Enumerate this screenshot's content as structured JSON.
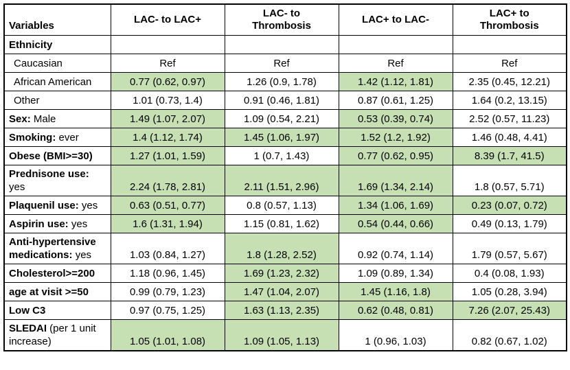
{
  "colors": {
    "highlight": "#c6e0b4",
    "border": "#000000",
    "background": "#ffffff"
  },
  "table": {
    "columns": [
      "Variables",
      "LAC- to LAC+",
      "LAC- to\nThrombosis",
      "LAC+ to LAC-",
      "LAC+ to\nThrombosis"
    ],
    "rows": [
      {
        "indent": false,
        "label": [
          {
            "text": "Ethnicity",
            "bold": true
          }
        ],
        "cells": [
          {
            "v": "",
            "hl": false
          },
          {
            "v": "",
            "hl": false
          },
          {
            "v": "",
            "hl": false
          },
          {
            "v": "",
            "hl": false
          }
        ]
      },
      {
        "indent": true,
        "label": [
          {
            "text": "Caucasian",
            "bold": false
          }
        ],
        "cells": [
          {
            "v": "Ref",
            "hl": false
          },
          {
            "v": "Ref",
            "hl": false
          },
          {
            "v": "Ref",
            "hl": false
          },
          {
            "v": "Ref",
            "hl": false
          }
        ]
      },
      {
        "indent": true,
        "label": [
          {
            "text": "African American",
            "bold": false
          }
        ],
        "cells": [
          {
            "v": "0.77 (0.62, 0.97)",
            "hl": true
          },
          {
            "v": "1.26 (0.9, 1.78)",
            "hl": false
          },
          {
            "v": "1.42 (1.12, 1.81)",
            "hl": true
          },
          {
            "v": "2.35 (0.45, 12.21)",
            "hl": false
          }
        ]
      },
      {
        "indent": true,
        "label": [
          {
            "text": "Other",
            "bold": false
          }
        ],
        "cells": [
          {
            "v": "1.01 (0.73, 1.4)",
            "hl": false
          },
          {
            "v": "0.91 (0.46, 1.81)",
            "hl": false
          },
          {
            "v": "0.87 (0.61, 1.25)",
            "hl": false
          },
          {
            "v": "1.64 (0.2, 13.15)",
            "hl": false
          }
        ]
      },
      {
        "indent": false,
        "label": [
          {
            "text": "Sex:",
            "bold": true
          },
          {
            "text": " Male",
            "bold": false
          }
        ],
        "cells": [
          {
            "v": "1.49 (1.07, 2.07)",
            "hl": true
          },
          {
            "v": "1.09 (0.54, 2.21)",
            "hl": false
          },
          {
            "v": "0.53 (0.39, 0.74)",
            "hl": true
          },
          {
            "v": "2.52 (0.57, 11.23)",
            "hl": false
          }
        ]
      },
      {
        "indent": false,
        "label": [
          {
            "text": "Smoking:",
            "bold": true
          },
          {
            "text": " ever",
            "bold": false
          }
        ],
        "cells": [
          {
            "v": "1.4 (1.12, 1.74)",
            "hl": true
          },
          {
            "v": "1.45 (1.06, 1.97)",
            "hl": true
          },
          {
            "v": "1.52 (1.2, 1.92)",
            "hl": true
          },
          {
            "v": "1.46 (0.48, 4.41)",
            "hl": false
          }
        ]
      },
      {
        "indent": false,
        "label": [
          {
            "text": "Obese (BMI>=30)",
            "bold": true
          }
        ],
        "cells": [
          {
            "v": "1.27 (1.01, 1.59)",
            "hl": true
          },
          {
            "v": "1 (0.7, 1.43)",
            "hl": false
          },
          {
            "v": "0.77 (0.62, 0.95)",
            "hl": true
          },
          {
            "v": "8.39 (1.7, 41.5)",
            "hl": true
          }
        ]
      },
      {
        "indent": false,
        "label": [
          {
            "text": "Prednisone use:",
            "bold": true,
            "br": true
          },
          {
            "text": "yes",
            "bold": false
          }
        ],
        "cells": [
          {
            "v": "2.24 (1.78, 2.81)",
            "hl": true
          },
          {
            "v": "2.11 (1.51, 2.96)",
            "hl": true
          },
          {
            "v": "1.69 (1.34, 2.14)",
            "hl": true
          },
          {
            "v": "1.8 (0.57, 5.71)",
            "hl": false
          }
        ]
      },
      {
        "indent": false,
        "label": [
          {
            "text": "Plaquenil use:",
            "bold": true
          },
          {
            "text": " yes",
            "bold": false
          }
        ],
        "cells": [
          {
            "v": "0.63 (0.51, 0.77)",
            "hl": true
          },
          {
            "v": "0.8 (0.57, 1.13)",
            "hl": false
          },
          {
            "v": "1.34 (1.06, 1.69)",
            "hl": true
          },
          {
            "v": "0.23 (0.07, 0.72)",
            "hl": true
          }
        ]
      },
      {
        "indent": false,
        "label": [
          {
            "text": "Aspirin use:",
            "bold": true
          },
          {
            "text": " yes",
            "bold": false
          }
        ],
        "cells": [
          {
            "v": "1.6 (1.31, 1.94)",
            "hl": true
          },
          {
            "v": "1.15 (0.81, 1.62)",
            "hl": false
          },
          {
            "v": "0.54 (0.44, 0.66)",
            "hl": true
          },
          {
            "v": "0.49 (0.13, 1.79)",
            "hl": false
          }
        ]
      },
      {
        "indent": false,
        "label": [
          {
            "text": "Anti-hypertensive medications:",
            "bold": true
          },
          {
            "text": " yes",
            "bold": false
          }
        ],
        "cells": [
          {
            "v": "1.03 (0.84, 1.27)",
            "hl": false
          },
          {
            "v": "1.8 (1.28, 2.52)",
            "hl": true
          },
          {
            "v": "0.92 (0.74, 1.14)",
            "hl": false
          },
          {
            "v": "1.79 (0.57, 5.67)",
            "hl": false
          }
        ]
      },
      {
        "indent": false,
        "label": [
          {
            "text": "Cholesterol>=200",
            "bold": true
          }
        ],
        "cells": [
          {
            "v": "1.18 (0.96, 1.45)",
            "hl": false
          },
          {
            "v": "1.69 (1.23, 2.32)",
            "hl": true
          },
          {
            "v": "1.09 (0.89, 1.34)",
            "hl": false
          },
          {
            "v": "0.4 (0.08, 1.93)",
            "hl": false
          }
        ]
      },
      {
        "indent": false,
        "label": [
          {
            "text": "age at visit >=50",
            "bold": true
          }
        ],
        "cells": [
          {
            "v": "0.99 (0.79, 1.23)",
            "hl": false
          },
          {
            "v": "1.47 (1.04, 2.07)",
            "hl": true
          },
          {
            "v": "1.45 (1.16, 1.8)",
            "hl": true
          },
          {
            "v": "1.05 (0.28, 3.94)",
            "hl": false
          }
        ]
      },
      {
        "indent": false,
        "label": [
          {
            "text": "Low C3",
            "bold": true
          }
        ],
        "cells": [
          {
            "v": "0.97 (0.75, 1.25)",
            "hl": false
          },
          {
            "v": "1.63 (1.13, 2.35)",
            "hl": true
          },
          {
            "v": "0.62 (0.48, 0.81)",
            "hl": true
          },
          {
            "v": "7.26 (2.07, 25.43)",
            "hl": true
          }
        ]
      },
      {
        "indent": false,
        "label": [
          {
            "text": "SLEDAI",
            "bold": true
          },
          {
            "text": " (per 1 unit increase)",
            "bold": false
          }
        ],
        "cells": [
          {
            "v": "1.05 (1.01, 1.08)",
            "hl": true
          },
          {
            "v": "1.09 (1.05, 1.13)",
            "hl": true
          },
          {
            "v": "1 (0.96, 1.03)",
            "hl": false
          },
          {
            "v": "0.82 (0.67, 1.02)",
            "hl": false
          }
        ]
      }
    ]
  }
}
